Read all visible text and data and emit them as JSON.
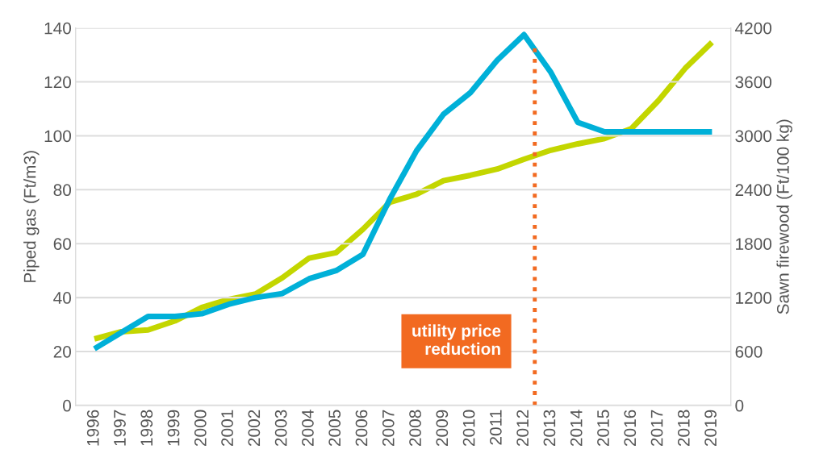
{
  "chart_data": {
    "type": "line",
    "ylabel": "Piped gas (Ft/m3)",
    "y2label": "Sawn firewood (Ft/100 kg)",
    "x": [
      1996,
      1997,
      1998,
      1999,
      2000,
      2001,
      2002,
      2003,
      2004,
      2005,
      2006,
      2007,
      2008,
      2009,
      2010,
      2011,
      2012,
      2013,
      2014,
      2015,
      2016,
      2017,
      2018,
      2019
    ],
    "xlim": [
      1995.3,
      2019.7
    ],
    "xticks": [
      1996,
      1997,
      1998,
      1999,
      2000,
      2001,
      2002,
      2003,
      2004,
      2005,
      2006,
      2007,
      2008,
      2009,
      2010,
      2011,
      2012,
      2013,
      2014,
      2015,
      2016,
      2017,
      2018,
      2019
    ],
    "ylim": [
      0,
      140
    ],
    "yticks": [
      0,
      20,
      40,
      60,
      80,
      100,
      120,
      140
    ],
    "y2lim": [
      0,
      4200
    ],
    "y2ticks": [
      0,
      600,
      1200,
      1800,
      2400,
      3000,
      3600,
      4200
    ],
    "series": [
      {
        "color": "#00b0d8",
        "values": [
          21,
          27,
          33,
          33,
          34,
          37.5,
          40,
          41.5,
          47,
          50,
          56,
          76.5,
          94.5,
          108,
          116,
          128,
          137.5,
          123.5,
          105,
          101.5,
          101.5,
          101.5,
          101.5,
          101.5
        ]
      },
      {
        "color": "#c3d600",
        "axis": "y2",
        "values": [
          740,
          820,
          840,
          940,
          1090,
          1180,
          1240,
          1420,
          1640,
          1700,
          1960,
          2260,
          2350,
          2500,
          2560,
          2630,
          2740,
          2840,
          2910,
          2970,
          3080,
          3390,
          3750,
          4040
        ]
      }
    ],
    "ref_lines": [
      {
        "axis": "x",
        "value": 2012.4,
        "label": "utility price\nreduction",
        "color": "#f26a21",
        "line_style": "dotted"
      }
    ],
    "grid": "y",
    "legend": false,
    "marker": "none",
    "line_style": "solid"
  }
}
